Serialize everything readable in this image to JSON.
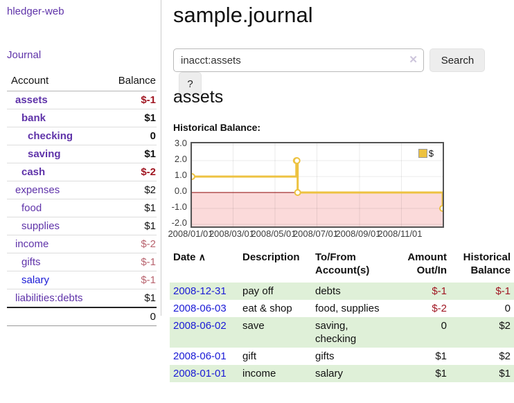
{
  "app": {
    "title": "hledger-web",
    "nav_journal": "Journal"
  },
  "sidebar": {
    "table": {
      "col_account": "Account",
      "col_balance": "Balance",
      "accounts": [
        {
          "name": "assets",
          "balance": "$-1"
        },
        {
          "name": "bank",
          "balance": "$1"
        },
        {
          "name": "checking",
          "balance": "0"
        },
        {
          "name": "saving",
          "balance": "$1"
        },
        {
          "name": "cash",
          "balance": "$-2"
        },
        {
          "name": "expenses",
          "balance": "$2"
        },
        {
          "name": "food",
          "balance": "$1"
        },
        {
          "name": "supplies",
          "balance": "$1"
        },
        {
          "name": "income",
          "balance": "$-2"
        },
        {
          "name": "gifts",
          "balance": "$-1"
        },
        {
          "name": "salary",
          "balance": "$-1"
        },
        {
          "name": "liabilities:debts",
          "balance": "$1"
        }
      ],
      "total": "0"
    }
  },
  "header": {
    "title": "sample.journal"
  },
  "search": {
    "query": "inacct:assets",
    "clear_icon": "✕",
    "button": "Search",
    "help_button": "?"
  },
  "account_page": {
    "heading": "assets",
    "chart_label": "Historical Balance:"
  },
  "chart_data": {
    "type": "line",
    "step": true,
    "title": "Historical Balance",
    "legend_label": "$",
    "legend_position": "top-right",
    "series_color": "#edc240",
    "x": [
      "2008-01-01",
      "2008-06-01",
      "2008-06-02",
      "2008-06-03",
      "2008-12-31"
    ],
    "y": [
      1,
      2,
      2,
      0,
      -1
    ],
    "xrange": [
      "2008-01-01",
      "2008-12-31"
    ],
    "ylim": [
      -2,
      3
    ],
    "yticks": [
      "3.0",
      "2.0",
      "1.0",
      "0.0",
      "-1.0",
      "-2.0"
    ],
    "xticks": [
      {
        "label": "2008/01/01",
        "date": "2008-01-01"
      },
      {
        "label": "2008/03/01",
        "date": "2008-03-01"
      },
      {
        "label": "2008/05/01",
        "date": "2008-05-01"
      },
      {
        "label": "2008/07/01",
        "date": "2008-07-01"
      },
      {
        "label": "2008/09/01",
        "date": "2008-09-01"
      },
      {
        "label": "2008/11/01",
        "date": "2008-11-01"
      }
    ],
    "grid": true,
    "negative_region_fill": "#fbdada",
    "zero_line_color": "#8b0000"
  },
  "register": {
    "columns": [
      "Date",
      "Description",
      "To/From Account(s)",
      "Amount Out/In",
      "Historical Balance"
    ],
    "sort_icon": "∧",
    "rows": [
      {
        "date": "2008-12-31",
        "description": "pay off",
        "accounts": "debts",
        "amount": "$-1",
        "balance": "$-1"
      },
      {
        "date": "2008-06-03",
        "description": "eat & shop",
        "accounts": "food, supplies",
        "amount": "$-2",
        "balance": "0"
      },
      {
        "date": "2008-06-02",
        "description": "save",
        "accounts": "saving, checking",
        "amount": "0",
        "balance": "$2"
      },
      {
        "date": "2008-06-01",
        "description": "gift",
        "accounts": "gifts",
        "amount": "$1",
        "balance": "$2"
      },
      {
        "date": "2008-01-01",
        "description": "income",
        "accounts": "salary",
        "amount": "$1",
        "balance": "$1"
      }
    ]
  }
}
